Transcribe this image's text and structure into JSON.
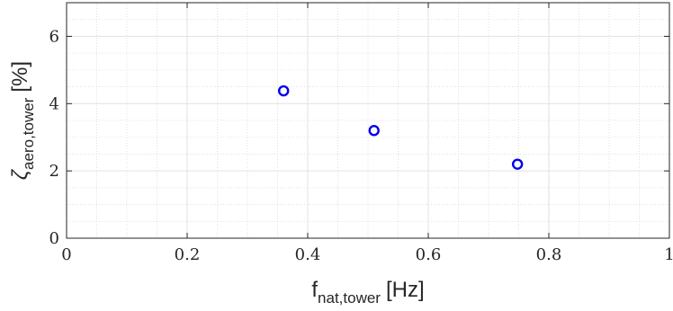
{
  "chart_data": {
    "type": "scatter",
    "title": "",
    "xlabel": {
      "symbol": "f",
      "subscript": "nat,tower",
      "unit": "[Hz]"
    },
    "ylabel": {
      "symbol": "ζ",
      "subscript": "aero,tower",
      "unit": "[%]"
    },
    "xlim": [
      0,
      1
    ],
    "ylim": [
      0,
      7
    ],
    "xticks": [
      0,
      0.2,
      0.4,
      0.6,
      0.8,
      1
    ],
    "xtick_labels": [
      "0",
      "0.2",
      "0.4",
      "0.6",
      "0.8",
      "1"
    ],
    "yticks": [
      0,
      2,
      4,
      6
    ],
    "ytick_labels": [
      "0",
      "2",
      "4",
      "6"
    ],
    "grid": true,
    "minor_grid": true,
    "marker": "open-circle",
    "marker_color": "#0000ee",
    "series": [
      {
        "x": [
          0.36,
          0.51,
          0.748
        ],
        "y": [
          4.38,
          3.2,
          2.2
        ]
      }
    ]
  }
}
